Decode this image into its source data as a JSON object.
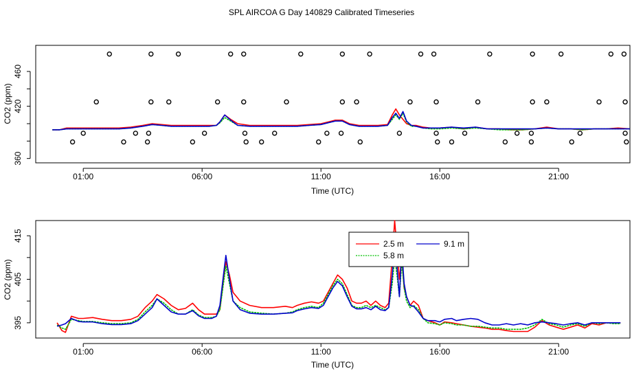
{
  "title": "SPL AIRCOA G  Day 140829  Calibrated Timeseries",
  "chart_data": [
    {
      "type": "line",
      "id": "top",
      "xlabel": "Time (UTC)",
      "ylabel": "CO2 (ppm)",
      "xlim": [
        -1.0,
        24.0
      ],
      "ylim": [
        355,
        490
      ],
      "xticks": [
        1,
        6,
        11,
        16,
        21
      ],
      "xtick_labels": [
        "01:00",
        "06:00",
        "11:00",
        "16:00",
        "21:00"
      ],
      "yticks": [
        360,
        380,
        400,
        420,
        440,
        460
      ],
      "ytick_labels": [
        "360",
        "",
        "",
        "420",
        "",
        "460"
      ],
      "flags": {
        "y480": [
          2.1,
          3.85,
          5.0,
          7.2,
          7.75,
          10.15,
          11.9,
          13.05,
          15.2,
          15.75,
          18.1,
          19.9,
          21.1,
          23.2,
          23.75
        ],
        "y425": [
          1.55,
          3.85,
          4.6,
          6.65,
          7.75,
          9.55,
          11.9,
          12.5,
          14.75,
          15.85,
          17.6,
          19.9,
          20.5,
          22.7,
          23.8
        ],
        "y389": [
          1.0,
          3.2,
          3.75,
          6.1,
          7.8,
          9.05,
          11.25,
          11.85,
          14.3,
          15.85,
          17.05,
          19.25,
          19.85,
          21.9,
          23.8
        ],
        "y379": [
          0.55,
          2.7,
          3.7,
          5.6,
          7.85,
          8.5,
          10.9,
          12.65,
          15.9,
          16.5,
          18.75,
          19.85,
          21.55,
          23.85
        ]
      },
      "series": [
        {
          "name": "2.5 m",
          "color": "#ff0000",
          "x": [
            -0.3,
            0,
            0.3,
            0.6,
            1,
            1.5,
            2,
            2.5,
            3,
            3.5,
            3.9,
            4.3,
            4.7,
            5.2,
            5.8,
            6.3,
            6.6,
            6.75,
            6.95,
            7.2,
            7.5,
            8,
            8.5,
            9,
            9.5,
            10,
            10.5,
            11,
            11.3,
            11.6,
            11.9,
            12.2,
            12.6,
            13,
            13.4,
            13.8,
            14.0,
            14.15,
            14.3,
            14.45,
            14.6,
            14.8,
            15,
            15.3,
            15.6,
            16,
            16.5,
            17,
            17.5,
            18,
            18.5,
            19,
            19.5,
            20,
            20.5,
            21,
            21.5,
            22,
            22.5,
            23,
            23.5,
            24
          ],
          "y": [
            393,
            393,
            395,
            395,
            395,
            395,
            395,
            395,
            396,
            398,
            400,
            399,
            398,
            398,
            398,
            398,
            398,
            402,
            410,
            405,
            400,
            398,
            398,
            398,
            398,
            398,
            399,
            400,
            402,
            404,
            404,
            400,
            398,
            398,
            398,
            399,
            410,
            417,
            410,
            405,
            400,
            398,
            398,
            396,
            395,
            395,
            396,
            394,
            396,
            394,
            394,
            393,
            393,
            394,
            396,
            394,
            394,
            393,
            394,
            394,
            395,
            394
          ]
        },
        {
          "name": "5.8 m",
          "color": "#00c000",
          "x": [
            -0.3,
            0,
            0.3,
            0.6,
            1,
            1.5,
            2,
            2.5,
            3,
            3.5,
            3.9,
            4.3,
            4.7,
            5.2,
            5.8,
            6.3,
            6.6,
            6.75,
            6.95,
            7.2,
            7.5,
            8,
            8.5,
            9,
            9.5,
            10,
            10.5,
            11,
            11.3,
            11.6,
            11.9,
            12.2,
            12.6,
            13,
            13.4,
            13.8,
            14.0,
            14.15,
            14.3,
            14.45,
            14.6,
            14.8,
            15,
            15.3,
            15.6,
            16,
            16.5,
            17,
            17.5,
            18,
            18.5,
            19,
            19.5,
            20,
            20.5,
            21,
            21.5,
            22,
            22.5,
            23,
            23.5,
            24
          ],
          "y": [
            393,
            393,
            394,
            394,
            394,
            394,
            394,
            394,
            395,
            397,
            399,
            398,
            397,
            397,
            397,
            397,
            398,
            401,
            407,
            403,
            398,
            397,
            397,
            397,
            397,
            397,
            398,
            399,
            401,
            403,
            403,
            399,
            397,
            397,
            397,
            398,
            405,
            410,
            405,
            412,
            402,
            397,
            397,
            395,
            394,
            394,
            395,
            394,
            395,
            394,
            393,
            393,
            393,
            394,
            395,
            394,
            394,
            393,
            394,
            394,
            394,
            394
          ]
        },
        {
          "name": "9.1 m",
          "color": "#0000cc",
          "x": [
            -0.3,
            0,
            0.3,
            0.6,
            1,
            1.5,
            2,
            2.5,
            3,
            3.5,
            3.9,
            4.3,
            4.7,
            5.2,
            5.8,
            6.3,
            6.6,
            6.75,
            6.95,
            7.2,
            7.5,
            8,
            8.5,
            9,
            9.5,
            10,
            10.5,
            11,
            11.3,
            11.6,
            11.9,
            12.2,
            12.6,
            13,
            13.4,
            13.8,
            14.0,
            14.15,
            14.3,
            14.45,
            14.6,
            14.8,
            15,
            15.3,
            15.6,
            16,
            16.5,
            17,
            17.5,
            18,
            18.5,
            19,
            19.5,
            20,
            20.5,
            21,
            21.5,
            22,
            22.5,
            23,
            23.5,
            24
          ],
          "y": [
            393,
            393,
            394,
            394,
            394,
            394,
            394,
            394,
            395,
            397,
            399,
            398,
            397,
            397,
            397,
            397,
            398,
            402,
            410,
            404,
            398,
            397,
            397,
            397,
            397,
            397,
            398,
            399,
            401,
            403,
            403,
            399,
            397,
            397,
            397,
            398,
            407,
            412,
            406,
            414,
            403,
            398,
            397,
            395,
            395,
            395,
            396,
            395,
            396,
            394,
            394,
            394,
            394,
            394,
            395,
            394,
            394,
            394,
            394,
            394,
            394,
            394
          ]
        }
      ]
    },
    {
      "type": "line",
      "id": "bottom",
      "xlabel": "Time (UTC)",
      "ylabel": "CO2 (ppm)",
      "xlim": [
        -1.0,
        24.0
      ],
      "ylim": [
        391.5,
        418.5
      ],
      "xticks": [
        1,
        6,
        11,
        16,
        21
      ],
      "xtick_labels": [
        "01:00",
        "06:00",
        "11:00",
        "16:00",
        "21:00"
      ],
      "yticks": [
        395,
        400,
        405,
        410,
        415
      ],
      "ytick_labels": [
        "395",
        "",
        "405",
        "",
        "415"
      ],
      "legend": {
        "position": "top-center",
        "entries": [
          "2.5 m",
          "5.8 m",
          "9.1 m"
        ]
      },
      "series": [
        {
          "name": "2.5 m",
          "color": "#ff0000",
          "x": [
            -0.1,
            0.1,
            0.25,
            0.5,
            0.8,
            1,
            1.4,
            1.8,
            2.2,
            2.6,
            3.0,
            3.3,
            3.6,
            3.9,
            4.1,
            4.4,
            4.7,
            5.0,
            5.3,
            5.6,
            5.85,
            6.1,
            6.4,
            6.6,
            6.75,
            6.9,
            7.0,
            7.15,
            7.3,
            7.6,
            8.0,
            8.5,
            9.0,
            9.5,
            9.8,
            10.0,
            10.3,
            10.6,
            10.9,
            11.1,
            11.3,
            11.5,
            11.7,
            11.9,
            12.1,
            12.3,
            12.5,
            12.7,
            12.9,
            13.1,
            13.3,
            13.5,
            13.7,
            13.85,
            14.0,
            14.1,
            14.2,
            14.3,
            14.4,
            14.5,
            14.6,
            14.75,
            14.9,
            15.1,
            15.3,
            15.5,
            15.8,
            16.0,
            16.2,
            16.5,
            16.7,
            17.0,
            17.3,
            17.6,
            17.9,
            18.2,
            18.5,
            18.8,
            19.1,
            19.4,
            19.7,
            20.0,
            20.3,
            20.6,
            20.9,
            21.2,
            21.5,
            21.8,
            22.1,
            22.4,
            22.7,
            23.0,
            23.3,
            23.6
          ],
          "y": [
            395,
            393.2,
            392.8,
            396.5,
            396,
            396,
            396.2,
            395.8,
            395.5,
            395.5,
            395.8,
            396.5,
            398.5,
            400,
            401.5,
            400.5,
            399,
            398,
            398.3,
            399.5,
            398,
            397,
            397,
            397,
            398,
            405,
            409,
            406,
            402,
            400,
            399,
            398.5,
            398.5,
            398.8,
            398.5,
            399,
            399.5,
            399.8,
            399.5,
            400,
            402,
            404,
            406,
            405,
            403,
            400,
            399.5,
            399.5,
            400,
            399,
            400,
            399,
            398.5,
            399.5,
            410,
            419,
            412,
            405,
            410,
            403,
            401,
            399,
            400,
            399,
            396,
            395.5,
            395,
            394.5,
            395.2,
            395,
            394.8,
            394.5,
            394.2,
            394,
            393.8,
            393.5,
            393.5,
            393.2,
            393,
            393,
            393,
            394,
            395.5,
            394.5,
            394,
            393.5,
            394,
            394.5,
            393.8,
            394.8,
            394.5,
            395,
            395,
            395
          ]
        },
        {
          "name": "5.8 m",
          "color": "#00c000",
          "x": [
            -0.1,
            0.1,
            0.25,
            0.5,
            0.8,
            1,
            1.4,
            1.8,
            2.2,
            2.6,
            3.0,
            3.3,
            3.6,
            3.9,
            4.1,
            4.4,
            4.7,
            5.0,
            5.3,
            5.6,
            5.85,
            6.1,
            6.4,
            6.6,
            6.75,
            6.9,
            7.0,
            7.15,
            7.3,
            7.6,
            8.0,
            8.5,
            9.0,
            9.5,
            9.8,
            10.0,
            10.3,
            10.6,
            10.9,
            11.1,
            11.3,
            11.5,
            11.7,
            11.9,
            12.1,
            12.3,
            12.5,
            12.7,
            12.9,
            13.1,
            13.3,
            13.5,
            13.7,
            13.85,
            14.0,
            14.1,
            14.2,
            14.3,
            14.4,
            14.5,
            14.6,
            14.75,
            14.9,
            15.1,
            15.3,
            15.5,
            15.8,
            16.0,
            16.2,
            16.5,
            16.7,
            17.0,
            17.3,
            17.6,
            17.9,
            18.2,
            18.5,
            18.8,
            19.1,
            19.4,
            19.7,
            20.0,
            20.3,
            20.6,
            20.9,
            21.2,
            21.5,
            21.8,
            22.1,
            22.4,
            22.7,
            23.0,
            23.3,
            23.6
          ],
          "y": [
            394.5,
            393.8,
            393.5,
            395.8,
            395.5,
            395.3,
            395.3,
            395,
            394.8,
            394.8,
            395,
            395.8,
            397.5,
            399,
            400.5,
            399.5,
            398,
            397,
            397,
            398,
            396.8,
            396.2,
            396.2,
            396.5,
            398,
            404,
            408,
            404,
            400,
            398.5,
            397.5,
            397.2,
            397,
            397.2,
            397.5,
            398,
            398.5,
            398.8,
            398.5,
            399.5,
            401.5,
            403.5,
            405,
            404,
            401.5,
            399,
            398.5,
            398.5,
            399,
            398.5,
            399,
            398.5,
            398,
            398.5,
            404,
            410,
            406,
            401,
            409,
            403,
            400,
            398.5,
            399,
            398,
            396,
            395,
            394.8,
            394.5,
            395,
            394.8,
            394.5,
            394.5,
            394.2,
            394.2,
            394,
            393.8,
            393.8,
            393.5,
            393.5,
            393.5,
            393.8,
            394.5,
            395.8,
            394.8,
            394.5,
            394,
            394.5,
            394.8,
            394.2,
            395,
            394.8,
            395,
            394.8,
            394.8
          ]
        },
        {
          "name": "9.1 m",
          "color": "#0000cc",
          "x": [
            -0.1,
            0.1,
            0.25,
            0.5,
            0.8,
            1,
            1.4,
            1.8,
            2.2,
            2.6,
            3.0,
            3.3,
            3.6,
            3.9,
            4.1,
            4.4,
            4.7,
            5.0,
            5.3,
            5.6,
            5.85,
            6.1,
            6.4,
            6.6,
            6.75,
            6.9,
            7.0,
            7.15,
            7.3,
            7.6,
            8.0,
            8.5,
            9.0,
            9.5,
            9.8,
            10.0,
            10.3,
            10.6,
            10.9,
            11.1,
            11.3,
            11.5,
            11.7,
            11.9,
            12.1,
            12.3,
            12.5,
            12.7,
            12.9,
            13.1,
            13.3,
            13.5,
            13.7,
            13.85,
            14.0,
            14.1,
            14.2,
            14.3,
            14.4,
            14.5,
            14.6,
            14.75,
            14.9,
            15.1,
            15.3,
            15.5,
            15.8,
            16.0,
            16.2,
            16.5,
            16.7,
            17.0,
            17.3,
            17.6,
            17.9,
            18.2,
            18.5,
            18.8,
            19.1,
            19.4,
            19.7,
            20.0,
            20.3,
            20.6,
            20.9,
            21.2,
            21.5,
            21.8,
            22.1,
            22.4,
            22.7,
            23.0,
            23.3,
            23.6
          ],
          "y": [
            394.2,
            394.5,
            394.8,
            396,
            395.3,
            395.2,
            395.2,
            394.8,
            394.6,
            394.6,
            394.8,
            395.5,
            397,
            398.5,
            400.5,
            399,
            397.5,
            397,
            397,
            397.8,
            396.6,
            396,
            396,
            396.5,
            399,
            406,
            410.5,
            405,
            400,
            398,
            397.2,
            397,
            397,
            397.2,
            397.3,
            397.8,
            398.2,
            398.5,
            398.3,
            399,
            401,
            403,
            404.5,
            403.5,
            401,
            398.8,
            398.2,
            398.2,
            398.5,
            398,
            398.8,
            398,
            397.8,
            398.5,
            406,
            413,
            408,
            401,
            412,
            404,
            401,
            399,
            398.8,
            397.5,
            396,
            395.5,
            395.5,
            395.2,
            395.8,
            396,
            395.5,
            395.8,
            396,
            395.8,
            395,
            394.5,
            394.5,
            394.8,
            394.5,
            394.8,
            394.5,
            395,
            395.2,
            395,
            394.8,
            394.5,
            394.8,
            395,
            394.5,
            395,
            395,
            395,
            395,
            395
          ]
        }
      ]
    }
  ]
}
